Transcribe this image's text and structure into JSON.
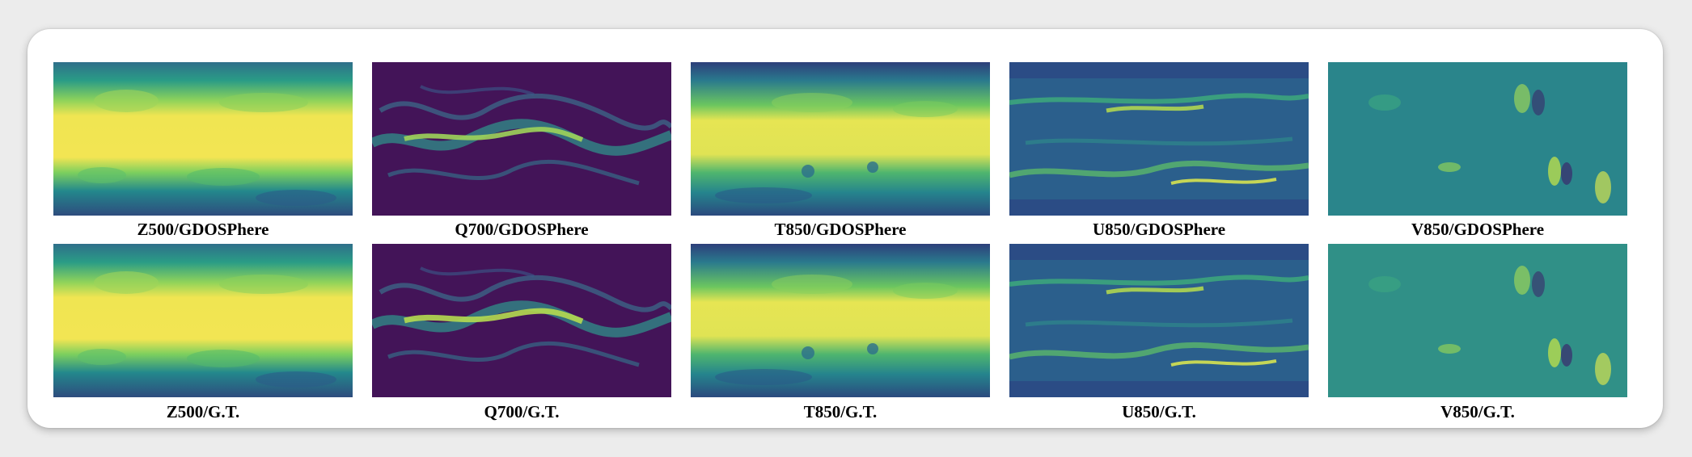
{
  "figure": {
    "rows": [
      {
        "panels": [
          {
            "caption": "Z500/GDOSPhere",
            "field": "z500",
            "colors": {
              "base": "#3a7f8e",
              "band": "#efe551",
              "edge": "#2e5f8a"
            }
          },
          {
            "caption": "Q700/GDOSPhere",
            "field": "q700",
            "colors": {
              "base": "#431458",
              "band": "#36988a",
              "edge": "#2a1a4a"
            }
          },
          {
            "caption": "T850/GDOSPhere",
            "field": "t850",
            "colors": {
              "base": "#2c6e8c",
              "band": "#e6e553",
              "edge": "#2b3f7a"
            }
          },
          {
            "caption": "U850/GDOSPhere",
            "field": "u850",
            "colors": {
              "base": "#2a6f8e",
              "band": "#a4d74f",
              "edge": "#2a3f80"
            }
          },
          {
            "caption": "V850/GDOSPhere",
            "field": "v850",
            "colors": {
              "base": "#2b8a8a",
              "band": "#66c06a",
              "edge": "#2a5c8c"
            }
          }
        ]
      },
      {
        "panels": [
          {
            "caption": "Z500/G.T.",
            "field": "z500",
            "colors": {
              "base": "#3a7f8e",
              "band": "#efe551",
              "edge": "#2e5f8a"
            }
          },
          {
            "caption": "Q700/G.T.",
            "field": "q700",
            "colors": {
              "base": "#431458",
              "band": "#36988a",
              "edge": "#2a1a4a"
            }
          },
          {
            "caption": "T850/G.T.",
            "field": "t850",
            "colors": {
              "base": "#2c6e8c",
              "band": "#e6e553",
              "edge": "#2b3f7a"
            }
          },
          {
            "caption": "U850/G.T.",
            "field": "u850",
            "colors": {
              "base": "#2a6f8e",
              "band": "#a4d74f",
              "edge": "#2a3f80"
            }
          },
          {
            "caption": "V850/G.T.",
            "field": "v850",
            "colors": {
              "base": "#2b8a8a",
              "band": "#66c06a",
              "edge": "#2a5c8c"
            }
          }
        ]
      }
    ]
  }
}
